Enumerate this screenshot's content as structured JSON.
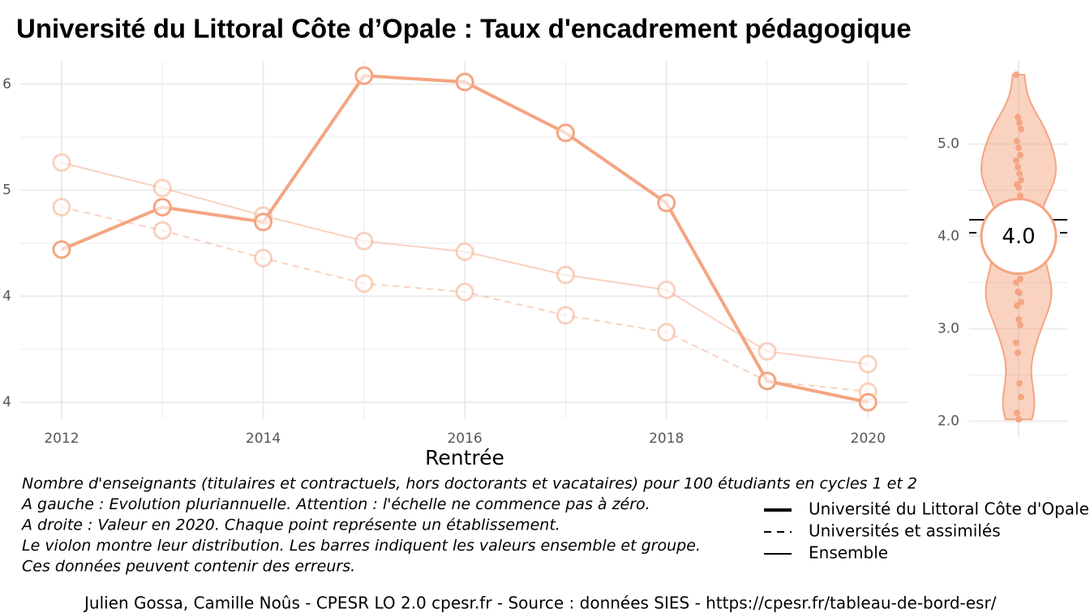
{
  "chart_data": [
    {
      "type": "line",
      "title": "Université du Littoral Côte d’Opale  :  Taux d'encadrement pédagogique",
      "xlabel": "Rentrée",
      "caption": [
        "Nombre d'enseignants (titulaires et contractuels, hors doctorants et vacataires) pour 100 étudiants en cycles 1 et 2",
        "A gauche : Evolution pluriannuelle. Attention : l'échelle ne commence pas à zéro.",
        "A droite : Valeur en 2020. Chaque point représente un établissement.",
        "Le violon montre leur distribution. Les barres indiquent les valeurs ensemble et groupe.",
        "Ces données peuvent contenir des erreurs."
      ],
      "source": "Julien Gossa, Camille Noûs - CPESR LO 2.0 cpesr.fr - Source : données SIES - https://cpesr.fr/tableau-de-bord-esr/",
      "x": [
        2012,
        2013,
        2014,
        2015,
        2016,
        2017,
        2018,
        2019,
        2020
      ],
      "xlim": [
        2011.59,
        2020.4
      ],
      "xticks": [
        2012,
        2014,
        2016,
        2018,
        2020
      ],
      "ylim": [
        3.92,
        5.61
      ],
      "yticks": [
        {
          "value": 4.0,
          "label": "4"
        },
        {
          "value": 4.5,
          "label": "4"
        },
        {
          "value": 5.0,
          "label": "5"
        },
        {
          "value": 5.5,
          "label": "6"
        }
      ],
      "grid": true,
      "series": [
        {
          "name": "Université du Littoral Côte d'Opale",
          "color": "#f4a582",
          "linestyle": "solid",
          "linewidth": 4,
          "opacity": 1,
          "values": [
            4.72,
            4.92,
            4.85,
            5.54,
            5.51,
            5.27,
            4.94,
            4.1,
            4.0
          ]
        },
        {
          "name": "Universités et assimilés",
          "color": "#f4a582",
          "linestyle": "dashed",
          "linewidth": 2,
          "opacity": 0.5,
          "values": [
            4.92,
            4.81,
            4.68,
            4.56,
            4.52,
            4.41,
            4.33,
            4.1,
            4.05
          ]
        },
        {
          "name": "Ensemble",
          "color": "#f4a582",
          "linestyle": "solid",
          "linewidth": 2,
          "opacity": 0.5,
          "values": [
            5.13,
            5.01,
            4.88,
            4.76,
            4.71,
            4.6,
            4.53,
            4.24,
            4.18
          ]
        }
      ]
    },
    {
      "type": "violin",
      "color": "#f4a582",
      "ylim": [
        1.82,
        5.9
      ],
      "yticks": [
        {
          "value": 2.0,
          "label": "2.0"
        },
        {
          "value": 3.0,
          "label": "3.0"
        },
        {
          "value": 4.0,
          "label": "4.0"
        },
        {
          "value": 5.0,
          "label": "5.0"
        }
      ],
      "points": [
        5.75,
        5.29,
        5.23,
        5.16,
        5.03,
        4.96,
        4.88,
        4.82,
        4.75,
        4.68,
        4.61,
        4.56,
        4.53,
        4.44,
        4.24,
        4.1,
        4.0,
        3.9,
        3.8,
        3.7,
        3.54,
        3.5,
        3.4,
        3.39,
        3.29,
        3.25,
        3.1,
        3.04,
        2.85,
        2.74,
        2.41,
        2.26,
        2.09,
        2.02
      ],
      "bars": [
        {
          "value": 4.18,
          "linestyle": "solid"
        },
        {
          "value": 4.04,
          "linestyle": "dashed"
        }
      ],
      "value": 4.0,
      "value_label": "4.0"
    }
  ]
}
